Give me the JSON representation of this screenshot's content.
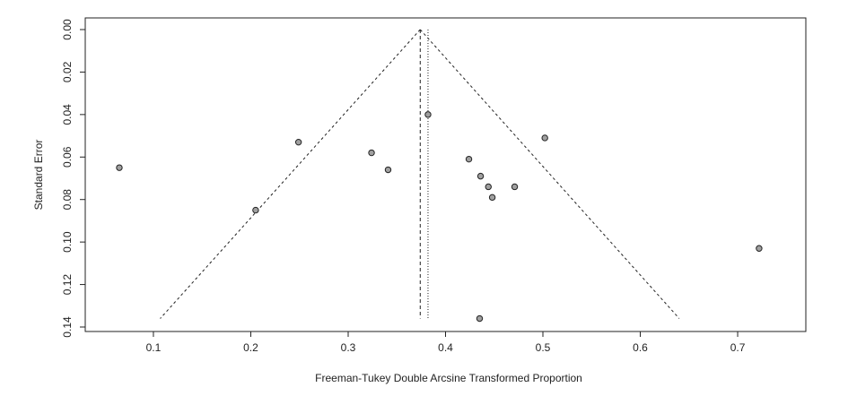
{
  "chart_data": {
    "type": "scatter",
    "subtype": "funnel-plot",
    "title": "",
    "xlabel": "Freeman-Tukey Double Arcsine Transformed Proportion",
    "ylabel": "Standard Error",
    "xlim": [
      0.03,
      0.77
    ],
    "ylim": [
      0.14,
      0.0
    ],
    "y_axis_reversed": true,
    "x_ticks": [
      0.1,
      0.2,
      0.3,
      0.4,
      0.5,
      0.6,
      0.7
    ],
    "x_tick_labels": [
      "0.1",
      "0.2",
      "0.3",
      "0.4",
      "0.5",
      "0.6",
      "0.7"
    ],
    "y_ticks": [
      0.0,
      0.02,
      0.04,
      0.06,
      0.08,
      0.1,
      0.12,
      0.14
    ],
    "y_tick_labels": [
      "0.00",
      "0.02",
      "0.04",
      "0.06",
      "0.08",
      "0.10",
      "0.12",
      "0.14"
    ],
    "grid": false,
    "points": [
      {
        "x": 0.065,
        "y": 0.065
      },
      {
        "x": 0.205,
        "y": 0.085
      },
      {
        "x": 0.249,
        "y": 0.053
      },
      {
        "x": 0.324,
        "y": 0.058
      },
      {
        "x": 0.341,
        "y": 0.066
      },
      {
        "x": 0.382,
        "y": 0.04
      },
      {
        "x": 0.424,
        "y": 0.061
      },
      {
        "x": 0.436,
        "y": 0.069
      },
      {
        "x": 0.444,
        "y": 0.074
      },
      {
        "x": 0.448,
        "y": 0.079
      },
      {
        "x": 0.471,
        "y": 0.074
      },
      {
        "x": 0.502,
        "y": 0.051
      },
      {
        "x": 0.435,
        "y": 0.136
      },
      {
        "x": 0.722,
        "y": 0.103
      }
    ],
    "funnel": {
      "apex_x": 0.374,
      "apex_y": 0.0,
      "base_y": 0.136,
      "left_x": 0.107,
      "right_x": 0.64
    },
    "reference_lines": [
      {
        "x": 0.374,
        "style": "dashed"
      },
      {
        "x": 0.382,
        "style": "dotted"
      }
    ],
    "colors": {
      "point_fill": "#a0a0a0",
      "point_stroke": "#222222",
      "line": "#222222"
    }
  }
}
